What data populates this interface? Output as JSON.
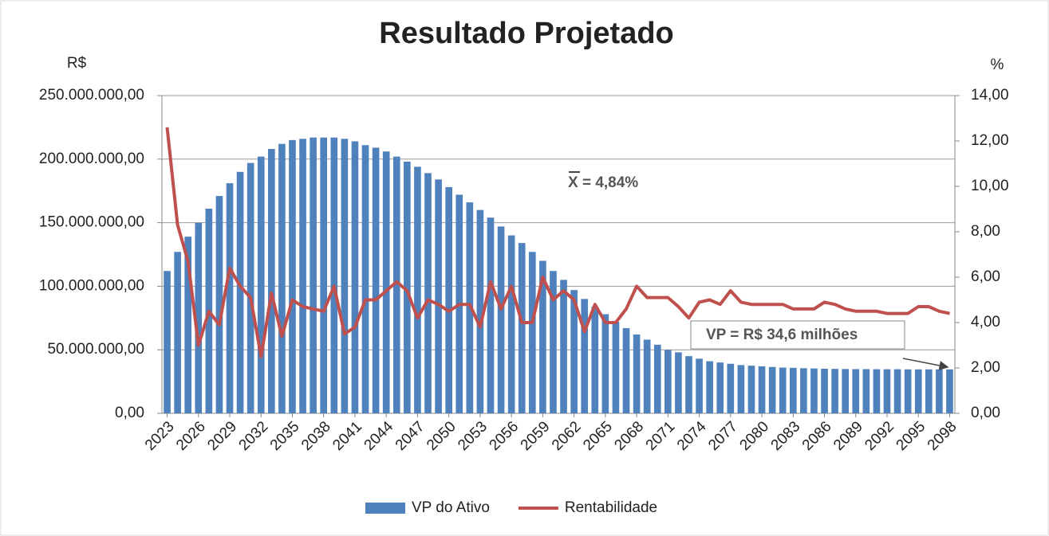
{
  "chart_data": {
    "type": "bar-line",
    "title": "Resultado Projetado",
    "y_axis_label": "R$",
    "y2_axis_label": "%",
    "categories": [
      "2023",
      null,
      null,
      "2026",
      null,
      null,
      "2029",
      null,
      null,
      "2032",
      null,
      null,
      "2035",
      null,
      null,
      "2038",
      null,
      null,
      "2041",
      null,
      null,
      "2044",
      null,
      null,
      "2047",
      null,
      null,
      "2050",
      null,
      null,
      "2053",
      null,
      null,
      "2056",
      null,
      null,
      "2059",
      null,
      null,
      "2062",
      null,
      null,
      "2065",
      null,
      null,
      "2068",
      null,
      null,
      "2071",
      null,
      null,
      "2074",
      null,
      null,
      "2077",
      null,
      null,
      "2080",
      null,
      null,
      "2083",
      null,
      null,
      "2086",
      null,
      null,
      "2089",
      null,
      null,
      "2092",
      null,
      null,
      "2095",
      null,
      null,
      "2098"
    ],
    "series": [
      {
        "name": "VP do Ativo",
        "color": "#4f81bd",
        "kind": "bar",
        "values": [
          112000000,
          127000000,
          139000000,
          150000000,
          161000000,
          171000000,
          181000000,
          190000000,
          197000000,
          202000000,
          208000000,
          212000000,
          215000000,
          216000000,
          217000000,
          217000000,
          217000000,
          216000000,
          214000000,
          211000000,
          209000000,
          206000000,
          202000000,
          198000000,
          194000000,
          189000000,
          184000000,
          178000000,
          172000000,
          166000000,
          160000000,
          154000000,
          147000000,
          140000000,
          134000000,
          127000000,
          120000000,
          112000000,
          105000000,
          97000000,
          90000000,
          84000000,
          78000000,
          72000000,
          67000000,
          62000000,
          58000000,
          54000000,
          50000000,
          48000000,
          45000000,
          43000000,
          41000000,
          40000000,
          39000000,
          38000000,
          37500000,
          37000000,
          36500000,
          36000000,
          35800000,
          35500000,
          35300000,
          35100000,
          35000000,
          34900000,
          34800000,
          34800000,
          34700000,
          34700000,
          34700000,
          34600000,
          34600000,
          34600000,
          34600000,
          34600000
        ]
      },
      {
        "name": "Rentabilidade",
        "color": "#c0504d",
        "kind": "line",
        "axis": "y2",
        "values": [
          12.6,
          8.3,
          6.7,
          3.0,
          4.5,
          3.9,
          6.4,
          5.6,
          5.1,
          2.5,
          5.3,
          3.4,
          5.0,
          4.7,
          4.6,
          4.5,
          5.6,
          3.5,
          3.8,
          5.0,
          5.0,
          5.4,
          5.8,
          5.4,
          4.2,
          5.0,
          4.8,
          4.5,
          4.8,
          4.8,
          3.8,
          5.8,
          4.6,
          5.6,
          4.0,
          4.0,
          6.0,
          5.0,
          5.4,
          5.0,
          3.6,
          4.8,
          4.0,
          4.0,
          4.6,
          5.6,
          5.1,
          5.1,
          5.1,
          4.7,
          4.2,
          4.9,
          5.0,
          4.8,
          5.4,
          4.9,
          4.8,
          4.8,
          4.8,
          4.8,
          4.6,
          4.6,
          4.6,
          4.9,
          4.8,
          4.6,
          4.5,
          4.5,
          4.5,
          4.4,
          4.4,
          4.4,
          4.7,
          4.7,
          4.5,
          4.4
        ]
      }
    ],
    "ylim": [
      0,
      250000000
    ],
    "yticks": [
      {
        "value": 0,
        "label": "0,00"
      },
      {
        "value": 50000000,
        "label": "50.000.000,00"
      },
      {
        "value": 100000000,
        "label": "100.000.000,00"
      },
      {
        "value": 150000000,
        "label": "150.000.000,00"
      },
      {
        "value": 200000000,
        "label": "200.000.000,00"
      },
      {
        "value": 250000000,
        "label": "250.000.000,00"
      }
    ],
    "y2lim": [
      0,
      14
    ],
    "y2ticks": [
      {
        "value": 0,
        "label": "0,00"
      },
      {
        "value": 2,
        "label": "2,00"
      },
      {
        "value": 4,
        "label": "4,00"
      },
      {
        "value": 6,
        "label": "6,00"
      },
      {
        "value": 8,
        "label": "8,00"
      },
      {
        "value": 10,
        "label": "10,00"
      },
      {
        "value": 12,
        "label": "12,00"
      },
      {
        "value": 14,
        "label": "14,00"
      }
    ],
    "grid": true,
    "legend": "bottom",
    "annotations": [
      "X = 4,84%",
      "VP = R$ 34,6 milhões"
    ]
  }
}
